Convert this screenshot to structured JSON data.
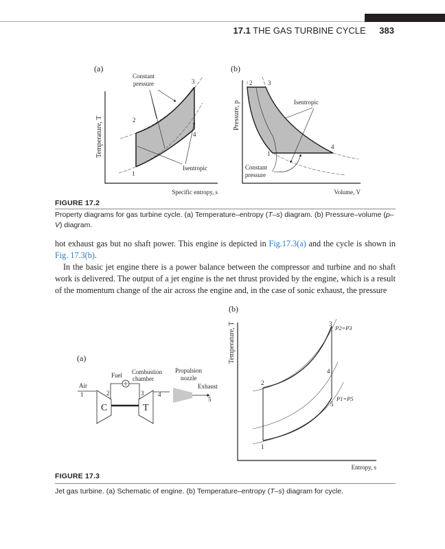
{
  "header": {
    "section": "17.1",
    "title": "THE GAS TURBINE CYCLE",
    "page": "383"
  },
  "figure_17_2": {
    "panel_a": {
      "label": "(a)",
      "ylabel": "Temperature, T",
      "xlabel": "Specific entropy, s",
      "annotation_constant_pressure_1": "Constant",
      "annotation_constant_pressure_2": "pressure",
      "annotation_isentropic": "Isentropic",
      "points": [
        "1",
        "2",
        "3",
        "4"
      ]
    },
    "panel_b": {
      "label": "(b)",
      "ylabel": "Pressure, p",
      "xlabel": "Volume, V",
      "annotation_isentropic": "Isentropic",
      "annotation_constant_pressure_1": "Constant",
      "annotation_constant_pressure_2": "pressure",
      "points": [
        "1",
        "2",
        "3",
        "4"
      ]
    },
    "caption_title": "FIGURE 17.2",
    "caption": {
      "a": "Property diagrams for gas turbine cycle. (a) Temperature–entropy (",
      "a_it": "T–s",
      "b": ") diagram. (b) Pressure–volume (",
      "b_it": "p–V",
      "c": ") diagram."
    }
  },
  "body_text": {
    "p1_a": "hot exhaust gas but no shaft power. This engine is depicted in ",
    "p1_link1": "Fig.17.3(a)",
    "p1_b": " and the cycle is shown in ",
    "p1_link2": "Fig. 17.3(b)",
    "p1_c": ".",
    "p2": "In the basic jet engine there is a power balance between the compressor and turbine and no shaft work is delivered. The output of a jet engine is the net thrust provided by the engine, which is a result of the momentum change of the air across the engine and, in the case of sonic exhaust, the pressure"
  },
  "figure_17_3": {
    "panel_a": {
      "label": "(a)",
      "fuel": "Fuel",
      "combustion_1": "Combustion",
      "combustion_2": "chamber",
      "nozzle_1": "Propulsion",
      "nozzle_2": "nozzle",
      "air": "Air",
      "exhaust": "Exhaust",
      "compressor": "C",
      "turbine": "T",
      "stations": [
        "1",
        "2",
        "3",
        "4",
        "5"
      ]
    },
    "panel_b": {
      "label": "(b)",
      "ylabel": "Temperature, T",
      "xlabel": "Entropy, s",
      "points": [
        "1",
        "2",
        "3",
        "4",
        "5"
      ],
      "isobar_high": "P2=P3",
      "isobar_low": "P1=P5"
    },
    "caption_title": "FIGURE 17.3",
    "caption": {
      "a": "Jet gas turbine. (a) Schematic of engine. (b) Temperature–entropy (",
      "a_it": "T–s",
      "b": ") diagram for cycle."
    }
  },
  "colors": {
    "link": "#2a7ab8",
    "shaded_area": "#bdbdbd",
    "nozzle": "#c8c8c8"
  }
}
